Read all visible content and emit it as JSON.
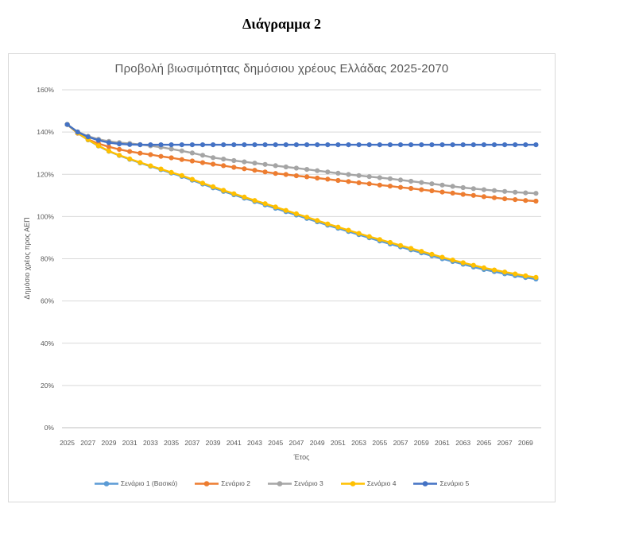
{
  "page": {
    "title": "Διάγραμμα 2"
  },
  "chart_data": {
    "type": "line",
    "title": "Προβολή βιωσιμότητας δημόσιου χρέους Ελλάδας 2025-2070",
    "xlabel": "Έτος",
    "ylabel": "Δημόσιο χρέος προς ΑΕΠ",
    "ylim": [
      0,
      160
    ],
    "grid": true,
    "legend_position": "bottom",
    "marker": "circle",
    "text_color": "#595959",
    "gridline_color": "#d9d9d9",
    "axisline_color": "#bfbfbf",
    "y_tick_values": [
      0,
      20,
      40,
      60,
      80,
      100,
      120,
      140,
      160
    ],
    "y_tick_labels": [
      "0%",
      "20%",
      "40%",
      "60%",
      "80%",
      "100%",
      "120%",
      "140%",
      "160%"
    ],
    "x": [
      2025,
      2026,
      2027,
      2028,
      2029,
      2030,
      2031,
      2032,
      2033,
      2034,
      2035,
      2036,
      2037,
      2038,
      2039,
      2040,
      2041,
      2042,
      2043,
      2044,
      2045,
      2046,
      2047,
      2048,
      2049,
      2050,
      2051,
      2052,
      2053,
      2054,
      2055,
      2056,
      2057,
      2058,
      2059,
      2060,
      2061,
      2062,
      2063,
      2064,
      2065,
      2066,
      2067,
      2068,
      2069,
      2070
    ],
    "x_tick_labels": [
      "2025",
      "2027",
      "2029",
      "2031",
      "2033",
      "2035",
      "2037",
      "2039",
      "2041",
      "2043",
      "2045",
      "2047",
      "2049",
      "2051",
      "2053",
      "2055",
      "2057",
      "2059",
      "2061",
      "2063",
      "2065",
      "2067",
      "2069"
    ],
    "series": [
      {
        "name": "Σενάριο 1 (Βασικό)",
        "color": "#5B9BD5",
        "values": [
          143.6,
          139.5,
          136.3,
          133.4,
          130.9,
          128.9,
          127.1,
          125.4,
          123.8,
          122.2,
          120.6,
          119.0,
          117.2,
          115.4,
          113.6,
          111.9,
          110.3,
          108.7,
          107.1,
          105.5,
          103.9,
          102.3,
          100.7,
          99.1,
          97.5,
          95.9,
          94.4,
          92.9,
          91.4,
          89.9,
          88.4,
          87.0,
          85.6,
          84.2,
          82.8,
          81.4,
          80.0,
          78.7,
          77.4,
          76.1,
          74.9,
          73.9,
          72.9,
          72.0,
          71.1,
          70.4
        ]
      },
      {
        "name": "Σενάριο 2",
        "color": "#ED7D31",
        "values": [
          143.6,
          139.5,
          136.6,
          134.5,
          133.0,
          131.8,
          130.8,
          130.0,
          129.3,
          128.5,
          127.8,
          127.0,
          126.3,
          125.5,
          124.8,
          124.1,
          123.3,
          122.6,
          121.9,
          121.1,
          120.4,
          119.9,
          119.3,
          118.8,
          118.2,
          117.7,
          117.1,
          116.6,
          116.0,
          115.5,
          114.9,
          114.4,
          113.8,
          113.3,
          112.7,
          112.2,
          111.6,
          111.1,
          110.5,
          110.0,
          109.4,
          108.9,
          108.4,
          108.0,
          107.6,
          107.3
        ]
      },
      {
        "name": "Σενάριο 3",
        "color": "#A5A5A5",
        "values": [
          143.6,
          140.1,
          138.0,
          136.6,
          135.6,
          135.0,
          134.6,
          134.1,
          133.5,
          132.8,
          132.0,
          131.1,
          130.1,
          129.0,
          127.9,
          127.2,
          126.5,
          125.9,
          125.3,
          124.7,
          124.1,
          123.5,
          122.9,
          122.3,
          121.7,
          121.1,
          120.5,
          119.9,
          119.4,
          118.9,
          118.4,
          117.9,
          117.3,
          116.7,
          116.1,
          115.5,
          114.9,
          114.3,
          113.7,
          113.2,
          112.7,
          112.3,
          111.9,
          111.5,
          111.2,
          111.0
        ]
      },
      {
        "name": "Σενάριο 4",
        "color": "#FFC000",
        "values": [
          143.6,
          139.6,
          136.4,
          133.5,
          131.0,
          129.0,
          127.3,
          125.6,
          124.0,
          122.5,
          120.9,
          119.4,
          117.6,
          115.8,
          114.1,
          112.4,
          110.8,
          109.2,
          107.6,
          106.1,
          104.5,
          102.9,
          101.3,
          99.7,
          98.1,
          96.5,
          95.0,
          93.5,
          92.0,
          90.5,
          89.1,
          87.7,
          86.3,
          84.9,
          83.5,
          82.1,
          80.7,
          79.4,
          78.1,
          76.9,
          75.7,
          74.7,
          73.7,
          72.8,
          71.9,
          71.2
        ]
      },
      {
        "name": "Σενάριο 5",
        "color": "#4472C4",
        "values": [
          143.6,
          140.0,
          137.7,
          136.1,
          135.0,
          134.4,
          134.1,
          134.0,
          134.0,
          134.0,
          134.0,
          134.0,
          134.0,
          134.0,
          134.0,
          134.0,
          134.0,
          134.0,
          134.0,
          134.0,
          134.0,
          134.0,
          134.0,
          134.0,
          134.0,
          134.0,
          134.0,
          134.0,
          134.0,
          134.0,
          134.0,
          134.0,
          134.0,
          134.0,
          134.0,
          134.0,
          134.0,
          134.0,
          134.0,
          134.0,
          134.0,
          134.0,
          134.0,
          134.0,
          134.0,
          134.0
        ]
      }
    ]
  }
}
